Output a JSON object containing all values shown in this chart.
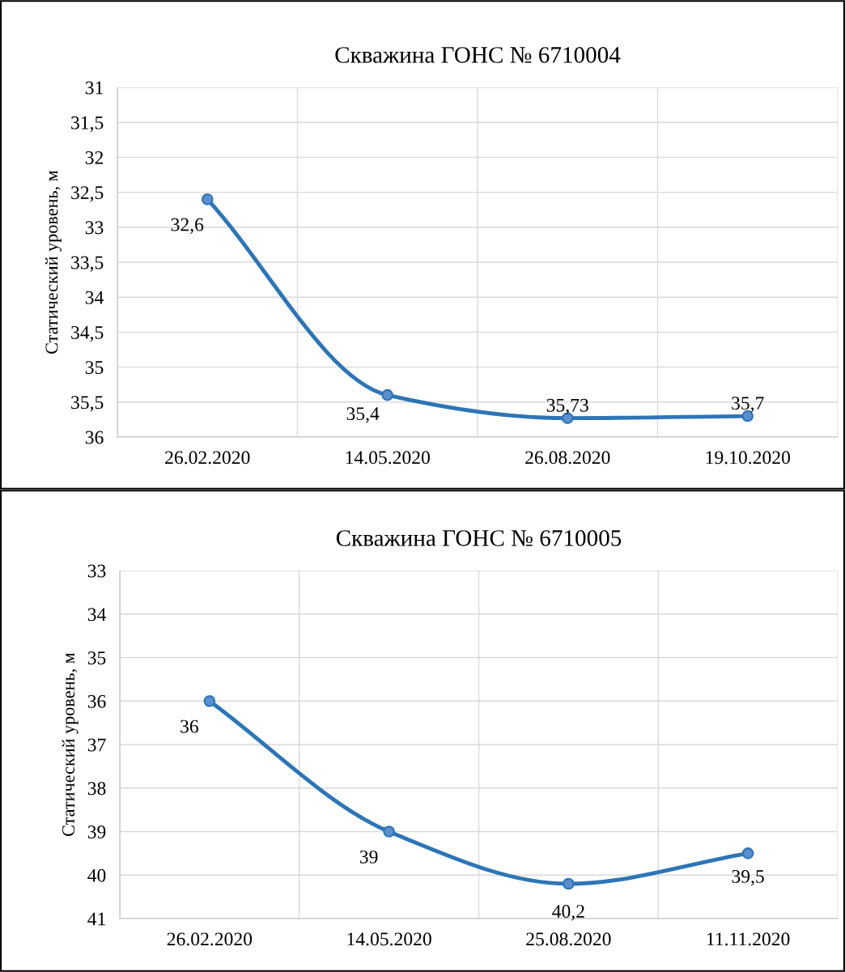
{
  "chart_data": [
    {
      "type": "line",
      "title": "Скважина ГОНС № 6710004",
      "ylabel": "Статический уровень, м",
      "categories": [
        "26.02.2020",
        "14.05.2020",
        "26.08.2020",
        "19.10.2020"
      ],
      "series": [
        {
          "color": "#2e75b6",
          "values": [
            32.6,
            35.4,
            35.73,
            35.7
          ],
          "value_labels": [
            "32,6",
            "35,4",
            "35,73",
            "35,7"
          ]
        }
      ],
      "ylim": [
        36,
        31
      ],
      "yticks": [
        31,
        {
          "value": 31.5,
          "label": "31,5"
        },
        32,
        {
          "value": 32.5,
          "label": "32,5"
        },
        33,
        {
          "value": 33.5,
          "label": "33,5"
        },
        34,
        {
          "value": 34.5,
          "label": "34,5"
        },
        35,
        {
          "value": 35.5,
          "label": "35,5"
        },
        36
      ],
      "grid": true,
      "marker": "circle",
      "line_style": "solid"
    },
    {
      "type": "line",
      "title": "Скважина ГОНС № 6710005",
      "ylabel": "Статический уровень, м",
      "categories": [
        "26.02.2020",
        "14.05.2020",
        "25.08.2020",
        "11.11.2020"
      ],
      "series": [
        {
          "color": "#2e75b6",
          "values": [
            36,
            39,
            40.2,
            39.5
          ],
          "value_labels": [
            "36",
            "39",
            "40,2",
            "39,5"
          ]
        }
      ],
      "ylim": [
        41,
        33
      ],
      "yticks": [
        33,
        34,
        35,
        36,
        37,
        38,
        39,
        40,
        41
      ],
      "grid": true,
      "marker": "circle",
      "line_style": "solid"
    }
  ]
}
